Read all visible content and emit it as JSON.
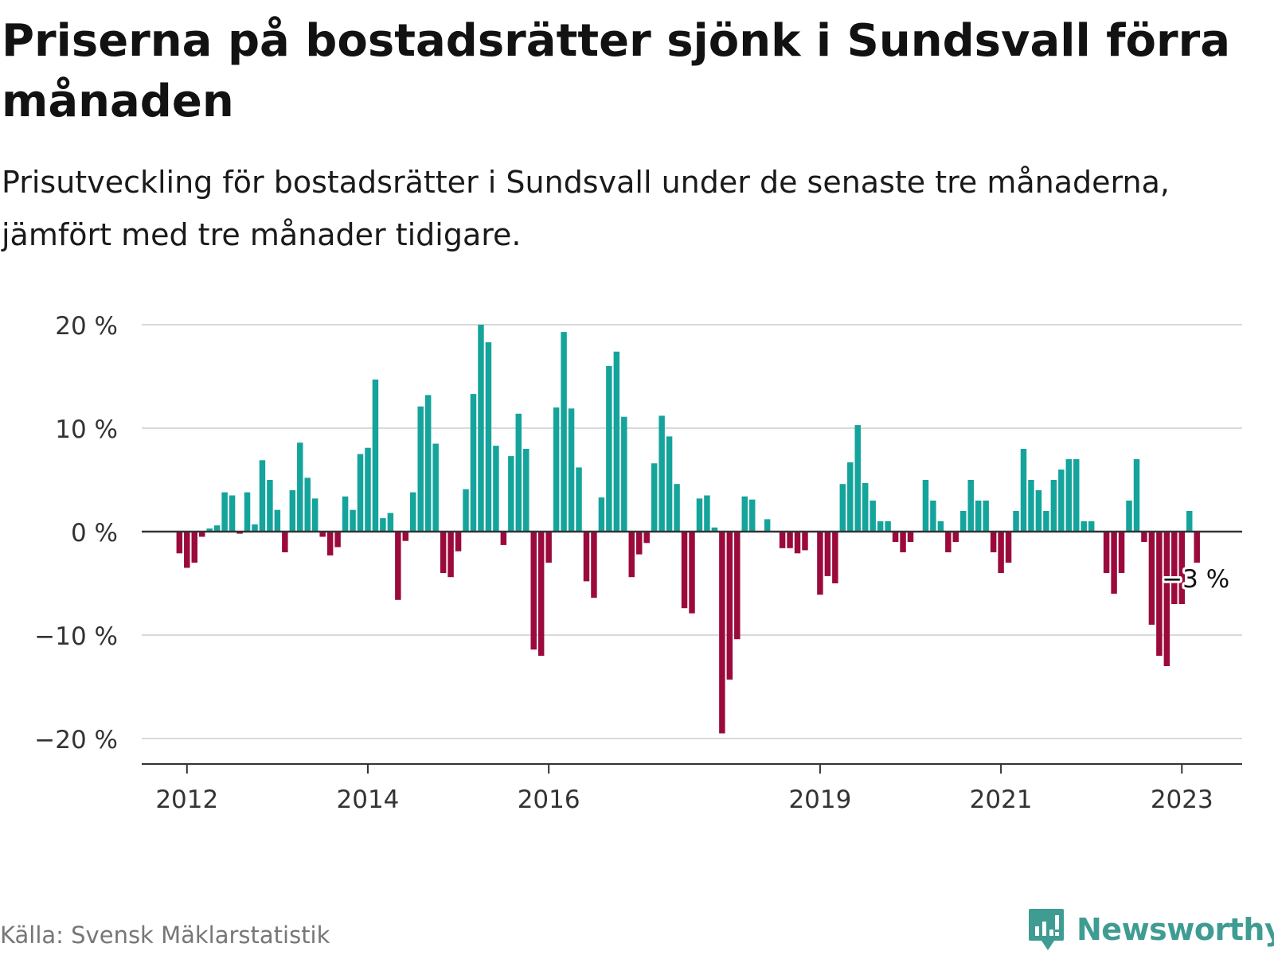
{
  "title": "Priserna på bostadsrätter sjönk i Sundsvall förra månaden",
  "subtitle": "Prisutveckling för bostadsrätter i Sundsvall under de senaste tre månaderna, jämfört med tre månader tidigare.",
  "source": "Källa: Svensk Mäklarstatistik",
  "brand": "Newsworthy",
  "colors": {
    "positive": "#14a49c",
    "negative": "#9b0a3c",
    "grid": "#d9d9d9",
    "axis": "#333333",
    "brand": "#3f9c92"
  },
  "chart_data": {
    "type": "bar",
    "x_start": "2011-07",
    "x_end": "2023-09",
    "x_ticks": [
      {
        "date": "2012-01",
        "label": "2012"
      },
      {
        "date": "2014-01",
        "label": "2014"
      },
      {
        "date": "2016-01",
        "label": "2016"
      },
      {
        "date": "2019-01",
        "label": "2019"
      },
      {
        "date": "2021-01",
        "label": "2021"
      },
      {
        "date": "2023-01",
        "label": "2023"
      }
    ],
    "y_ticks": [
      {
        "value": 20,
        "label": "20 %"
      },
      {
        "value": 10,
        "label": "10 %"
      },
      {
        "value": 0,
        "label": "0 %"
      },
      {
        "value": -10,
        "label": "−10 %"
      },
      {
        "value": -20,
        "label": "−20 %"
      }
    ],
    "ylim": [
      -22,
      20
    ],
    "grid": true,
    "annotation": {
      "date": "2023-03",
      "text": "−3 %"
    },
    "series": [
      {
        "values": [
          {
            "date": "2011-12",
            "value": -2.1
          },
          {
            "date": "2012-01",
            "value": -3.5
          },
          {
            "date": "2012-02",
            "value": -3.0
          },
          {
            "date": "2012-03",
            "value": -0.5
          },
          {
            "date": "2012-04",
            "value": 0.3
          },
          {
            "date": "2012-05",
            "value": 0.6
          },
          {
            "date": "2012-06",
            "value": 3.8
          },
          {
            "date": "2012-07",
            "value": 3.5
          },
          {
            "date": "2012-08",
            "value": -0.2
          },
          {
            "date": "2012-09",
            "value": 3.8
          },
          {
            "date": "2012-10",
            "value": 0.7
          },
          {
            "date": "2012-11",
            "value": 6.9
          },
          {
            "date": "2012-12",
            "value": 5.0
          },
          {
            "date": "2013-01",
            "value": 2.1
          },
          {
            "date": "2013-02",
            "value": -2.0
          },
          {
            "date": "2013-03",
            "value": 4.0
          },
          {
            "date": "2013-04",
            "value": 8.6
          },
          {
            "date": "2013-05",
            "value": 5.2
          },
          {
            "date": "2013-06",
            "value": 3.2
          },
          {
            "date": "2013-07",
            "value": -0.5
          },
          {
            "date": "2013-08",
            "value": -2.3
          },
          {
            "date": "2013-09",
            "value": -1.5
          },
          {
            "date": "2013-10",
            "value": 3.4
          },
          {
            "date": "2013-11",
            "value": 2.1
          },
          {
            "date": "2013-12",
            "value": 7.5
          },
          {
            "date": "2014-01",
            "value": 8.1
          },
          {
            "date": "2014-02",
            "value": 14.7
          },
          {
            "date": "2014-03",
            "value": 1.3
          },
          {
            "date": "2014-04",
            "value": 1.8
          },
          {
            "date": "2014-05",
            "value": -6.6
          },
          {
            "date": "2014-06",
            "value": -0.9
          },
          {
            "date": "2014-07",
            "value": 3.8
          },
          {
            "date": "2014-08",
            "value": 12.1
          },
          {
            "date": "2014-09",
            "value": 13.2
          },
          {
            "date": "2014-10",
            "value": 8.5
          },
          {
            "date": "2014-11",
            "value": -4.0
          },
          {
            "date": "2014-12",
            "value": -4.4
          },
          {
            "date": "2015-01",
            "value": -1.9
          },
          {
            "date": "2015-02",
            "value": 4.1
          },
          {
            "date": "2015-03",
            "value": 13.3
          },
          {
            "date": "2015-04",
            "value": 20.0
          },
          {
            "date": "2015-05",
            "value": 18.3
          },
          {
            "date": "2015-06",
            "value": 8.3
          },
          {
            "date": "2015-07",
            "value": -1.3
          },
          {
            "date": "2015-08",
            "value": 7.3
          },
          {
            "date": "2015-09",
            "value": 11.4
          },
          {
            "date": "2015-10",
            "value": 8.0
          },
          {
            "date": "2015-11",
            "value": -11.4
          },
          {
            "date": "2015-12",
            "value": -12.0
          },
          {
            "date": "2016-01",
            "value": -3.0
          },
          {
            "date": "2016-02",
            "value": 12.0
          },
          {
            "date": "2016-03",
            "value": 19.3
          },
          {
            "date": "2016-04",
            "value": 11.9
          },
          {
            "date": "2016-05",
            "value": 6.2
          },
          {
            "date": "2016-06",
            "value": -4.8
          },
          {
            "date": "2016-07",
            "value": -6.4
          },
          {
            "date": "2016-08",
            "value": 3.3
          },
          {
            "date": "2016-09",
            "value": 16.0
          },
          {
            "date": "2016-10",
            "value": 17.4
          },
          {
            "date": "2016-11",
            "value": 11.1
          },
          {
            "date": "2016-12",
            "value": -4.4
          },
          {
            "date": "2017-01",
            "value": -2.2
          },
          {
            "date": "2017-02",
            "value": -1.1
          },
          {
            "date": "2017-03",
            "value": 6.6
          },
          {
            "date": "2017-04",
            "value": 11.2
          },
          {
            "date": "2017-05",
            "value": 9.2
          },
          {
            "date": "2017-06",
            "value": 4.6
          },
          {
            "date": "2017-07",
            "value": -7.4
          },
          {
            "date": "2017-08",
            "value": -7.9
          },
          {
            "date": "2017-09",
            "value": 3.2
          },
          {
            "date": "2017-10",
            "value": 3.5
          },
          {
            "date": "2017-11",
            "value": 0.4
          },
          {
            "date": "2017-12",
            "value": -19.5
          },
          {
            "date": "2018-01",
            "value": -14.3
          },
          {
            "date": "2018-02",
            "value": -10.4
          },
          {
            "date": "2018-03",
            "value": 3.4
          },
          {
            "date": "2018-04",
            "value": 3.1
          },
          {
            "date": "2018-06",
            "value": 1.2
          },
          {
            "date": "2018-08",
            "value": -1.6
          },
          {
            "date": "2018-09",
            "value": -1.6
          },
          {
            "date": "2018-10",
            "value": -2.1
          },
          {
            "date": "2018-11",
            "value": -1.8
          },
          {
            "date": "2019-01",
            "value": -6.1
          },
          {
            "date": "2019-02",
            "value": -4.3
          },
          {
            "date": "2019-03",
            "value": -5.0
          },
          {
            "date": "2019-04",
            "value": 4.6
          },
          {
            "date": "2019-05",
            "value": 6.7
          },
          {
            "date": "2019-06",
            "value": 10.3
          },
          {
            "date": "2019-07",
            "value": 4.7
          },
          {
            "date": "2019-08",
            "value": 3.0
          },
          {
            "date": "2019-09",
            "value": 1.0
          },
          {
            "date": "2019-10",
            "value": 1.0
          },
          {
            "date": "2019-11",
            "value": -1.0
          },
          {
            "date": "2019-12",
            "value": -2.0
          },
          {
            "date": "2020-01",
            "value": -1.0
          },
          {
            "date": "2020-03",
            "value": 5.0
          },
          {
            "date": "2020-04",
            "value": 3.0
          },
          {
            "date": "2020-05",
            "value": 1.0
          },
          {
            "date": "2020-06",
            "value": -2.0
          },
          {
            "date": "2020-07",
            "value": -1.0
          },
          {
            "date": "2020-08",
            "value": 2.0
          },
          {
            "date": "2020-09",
            "value": 5.0
          },
          {
            "date": "2020-10",
            "value": 3.0
          },
          {
            "date": "2020-11",
            "value": 3.0
          },
          {
            "date": "2020-12",
            "value": -2.0
          },
          {
            "date": "2021-01",
            "value": -4.0
          },
          {
            "date": "2021-02",
            "value": -3.0
          },
          {
            "date": "2021-03",
            "value": 2.0
          },
          {
            "date": "2021-04",
            "value": 8.0
          },
          {
            "date": "2021-05",
            "value": 5.0
          },
          {
            "date": "2021-06",
            "value": 4.0
          },
          {
            "date": "2021-07",
            "value": 2.0
          },
          {
            "date": "2021-08",
            "value": 5.0
          },
          {
            "date": "2021-09",
            "value": 6.0
          },
          {
            "date": "2021-10",
            "value": 7.0
          },
          {
            "date": "2021-11",
            "value": 7.0
          },
          {
            "date": "2021-12",
            "value": 1.0
          },
          {
            "date": "2022-01",
            "value": 1.0
          },
          {
            "date": "2022-03",
            "value": -4.0
          },
          {
            "date": "2022-04",
            "value": -6.0
          },
          {
            "date": "2022-05",
            "value": -4.0
          },
          {
            "date": "2022-06",
            "value": 3.0
          },
          {
            "date": "2022-07",
            "value": 7.0
          },
          {
            "date": "2022-08",
            "value": -1.0
          },
          {
            "date": "2022-09",
            "value": -9.0
          },
          {
            "date": "2022-10",
            "value": -12.0
          },
          {
            "date": "2022-11",
            "value": -13.0
          },
          {
            "date": "2022-12",
            "value": -7.0
          },
          {
            "date": "2023-01",
            "value": -7.0
          },
          {
            "date": "2023-02",
            "value": 2.0
          },
          {
            "date": "2023-03",
            "value": -3.0
          }
        ]
      }
    ]
  }
}
